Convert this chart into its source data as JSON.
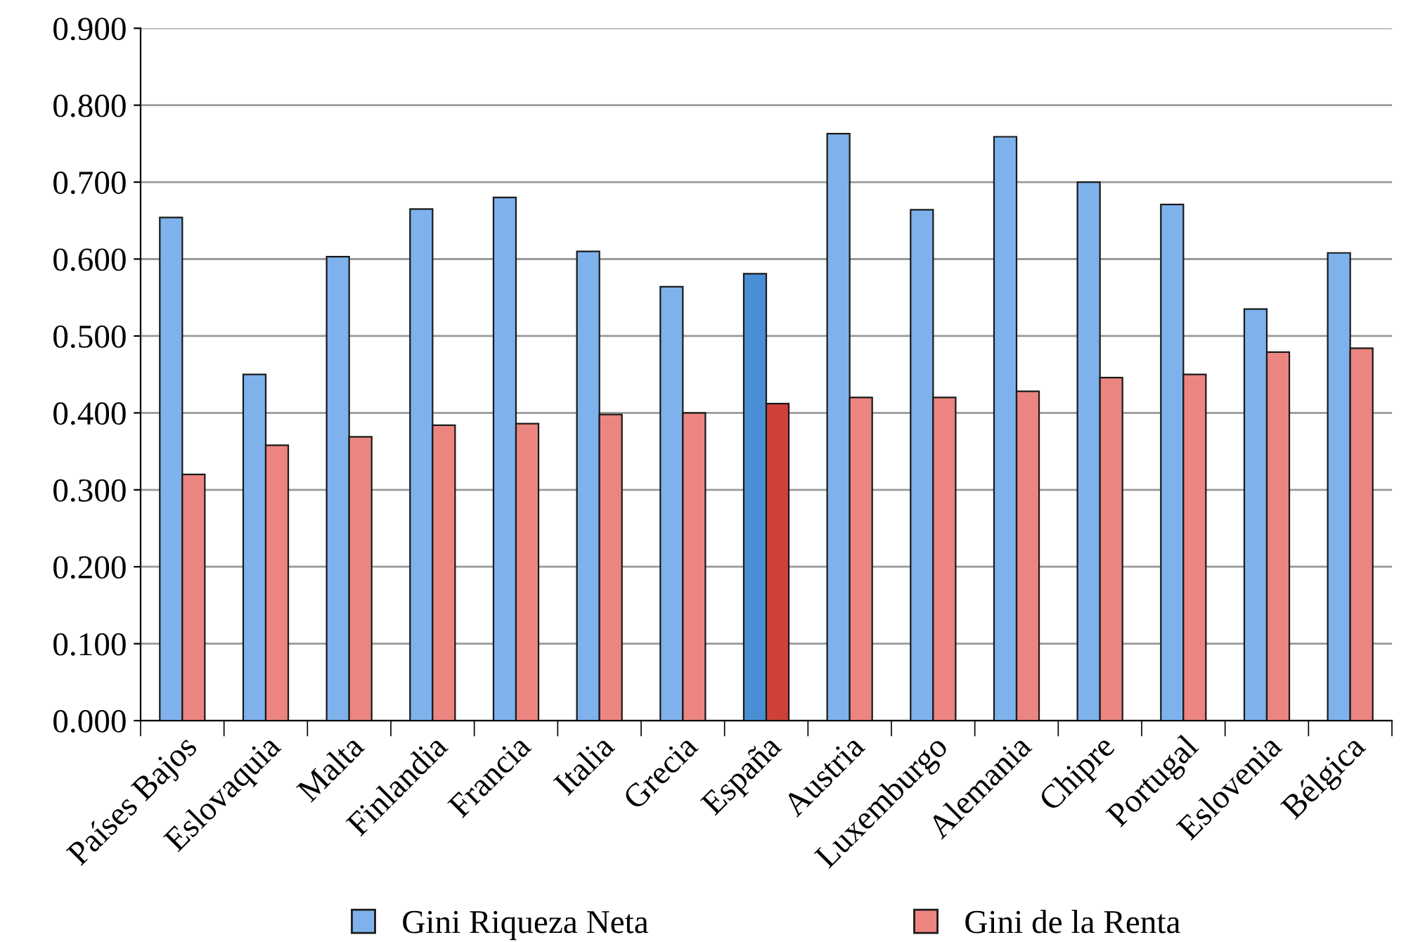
{
  "chart_data": {
    "type": "bar",
    "categories": [
      "Países Bajos",
      "Eslovaquia",
      "Malta",
      "Finlandia",
      "Francia",
      "Italia",
      "Grecia",
      "España",
      "Austria",
      "Luxemburgo",
      "Alemania",
      "Chipre",
      "Portugal",
      "Eslovenia",
      "Bélgica"
    ],
    "series": [
      {
        "name": "Gini Riqueza Neta",
        "color": "#7fb2ec",
        "colors": [
          "#7fb2ec",
          "#7fb2ec",
          "#7fb2ec",
          "#7fb2ec",
          "#7fb2ec",
          "#7fb2ec",
          "#7fb2ec",
          "#4a8fd6",
          "#7fb2ec",
          "#7fb2ec",
          "#7fb2ec",
          "#7fb2ec",
          "#7fb2ec",
          "#7fb2ec",
          "#7fb2ec"
        ],
        "values": [
          0.654,
          0.45,
          0.603,
          0.665,
          0.68,
          0.61,
          0.564,
          0.581,
          0.763,
          0.664,
          0.759,
          0.7,
          0.671,
          0.535,
          0.608
        ]
      },
      {
        "name": "Gini de la Renta",
        "color": "#ec8580",
        "colors": [
          "#ec8580",
          "#ec8580",
          "#ec8580",
          "#ec8580",
          "#ec8580",
          "#ec8580",
          "#ec8580",
          "#d0403a",
          "#ec8580",
          "#ec8580",
          "#ec8580",
          "#ec8580",
          "#ec8580",
          "#ec8580",
          "#ec8580"
        ],
        "values": [
          0.32,
          0.358,
          0.369,
          0.384,
          0.386,
          0.398,
          0.4,
          0.412,
          0.42,
          0.42,
          0.428,
          0.446,
          0.45,
          0.479,
          0.484
        ]
      }
    ],
    "ylim": [
      0,
      0.9
    ],
    "yticks": [
      {
        "value": 0,
        "label": "0.000"
      },
      {
        "value": 0.1,
        "label": "0.100"
      },
      {
        "value": 0.2,
        "label": "0.200"
      },
      {
        "value": 0.3,
        "label": "0.300"
      },
      {
        "value": 0.4,
        "label": "0.400"
      },
      {
        "value": 0.5,
        "label": "0.500"
      },
      {
        "value": 0.6,
        "label": "0.600"
      },
      {
        "value": 0.7,
        "label": "0.700"
      },
      {
        "value": 0.8,
        "label": "0.800"
      },
      {
        "value": 0.9,
        "label": "0.900"
      }
    ],
    "grid": "y",
    "legend": "bottom"
  }
}
